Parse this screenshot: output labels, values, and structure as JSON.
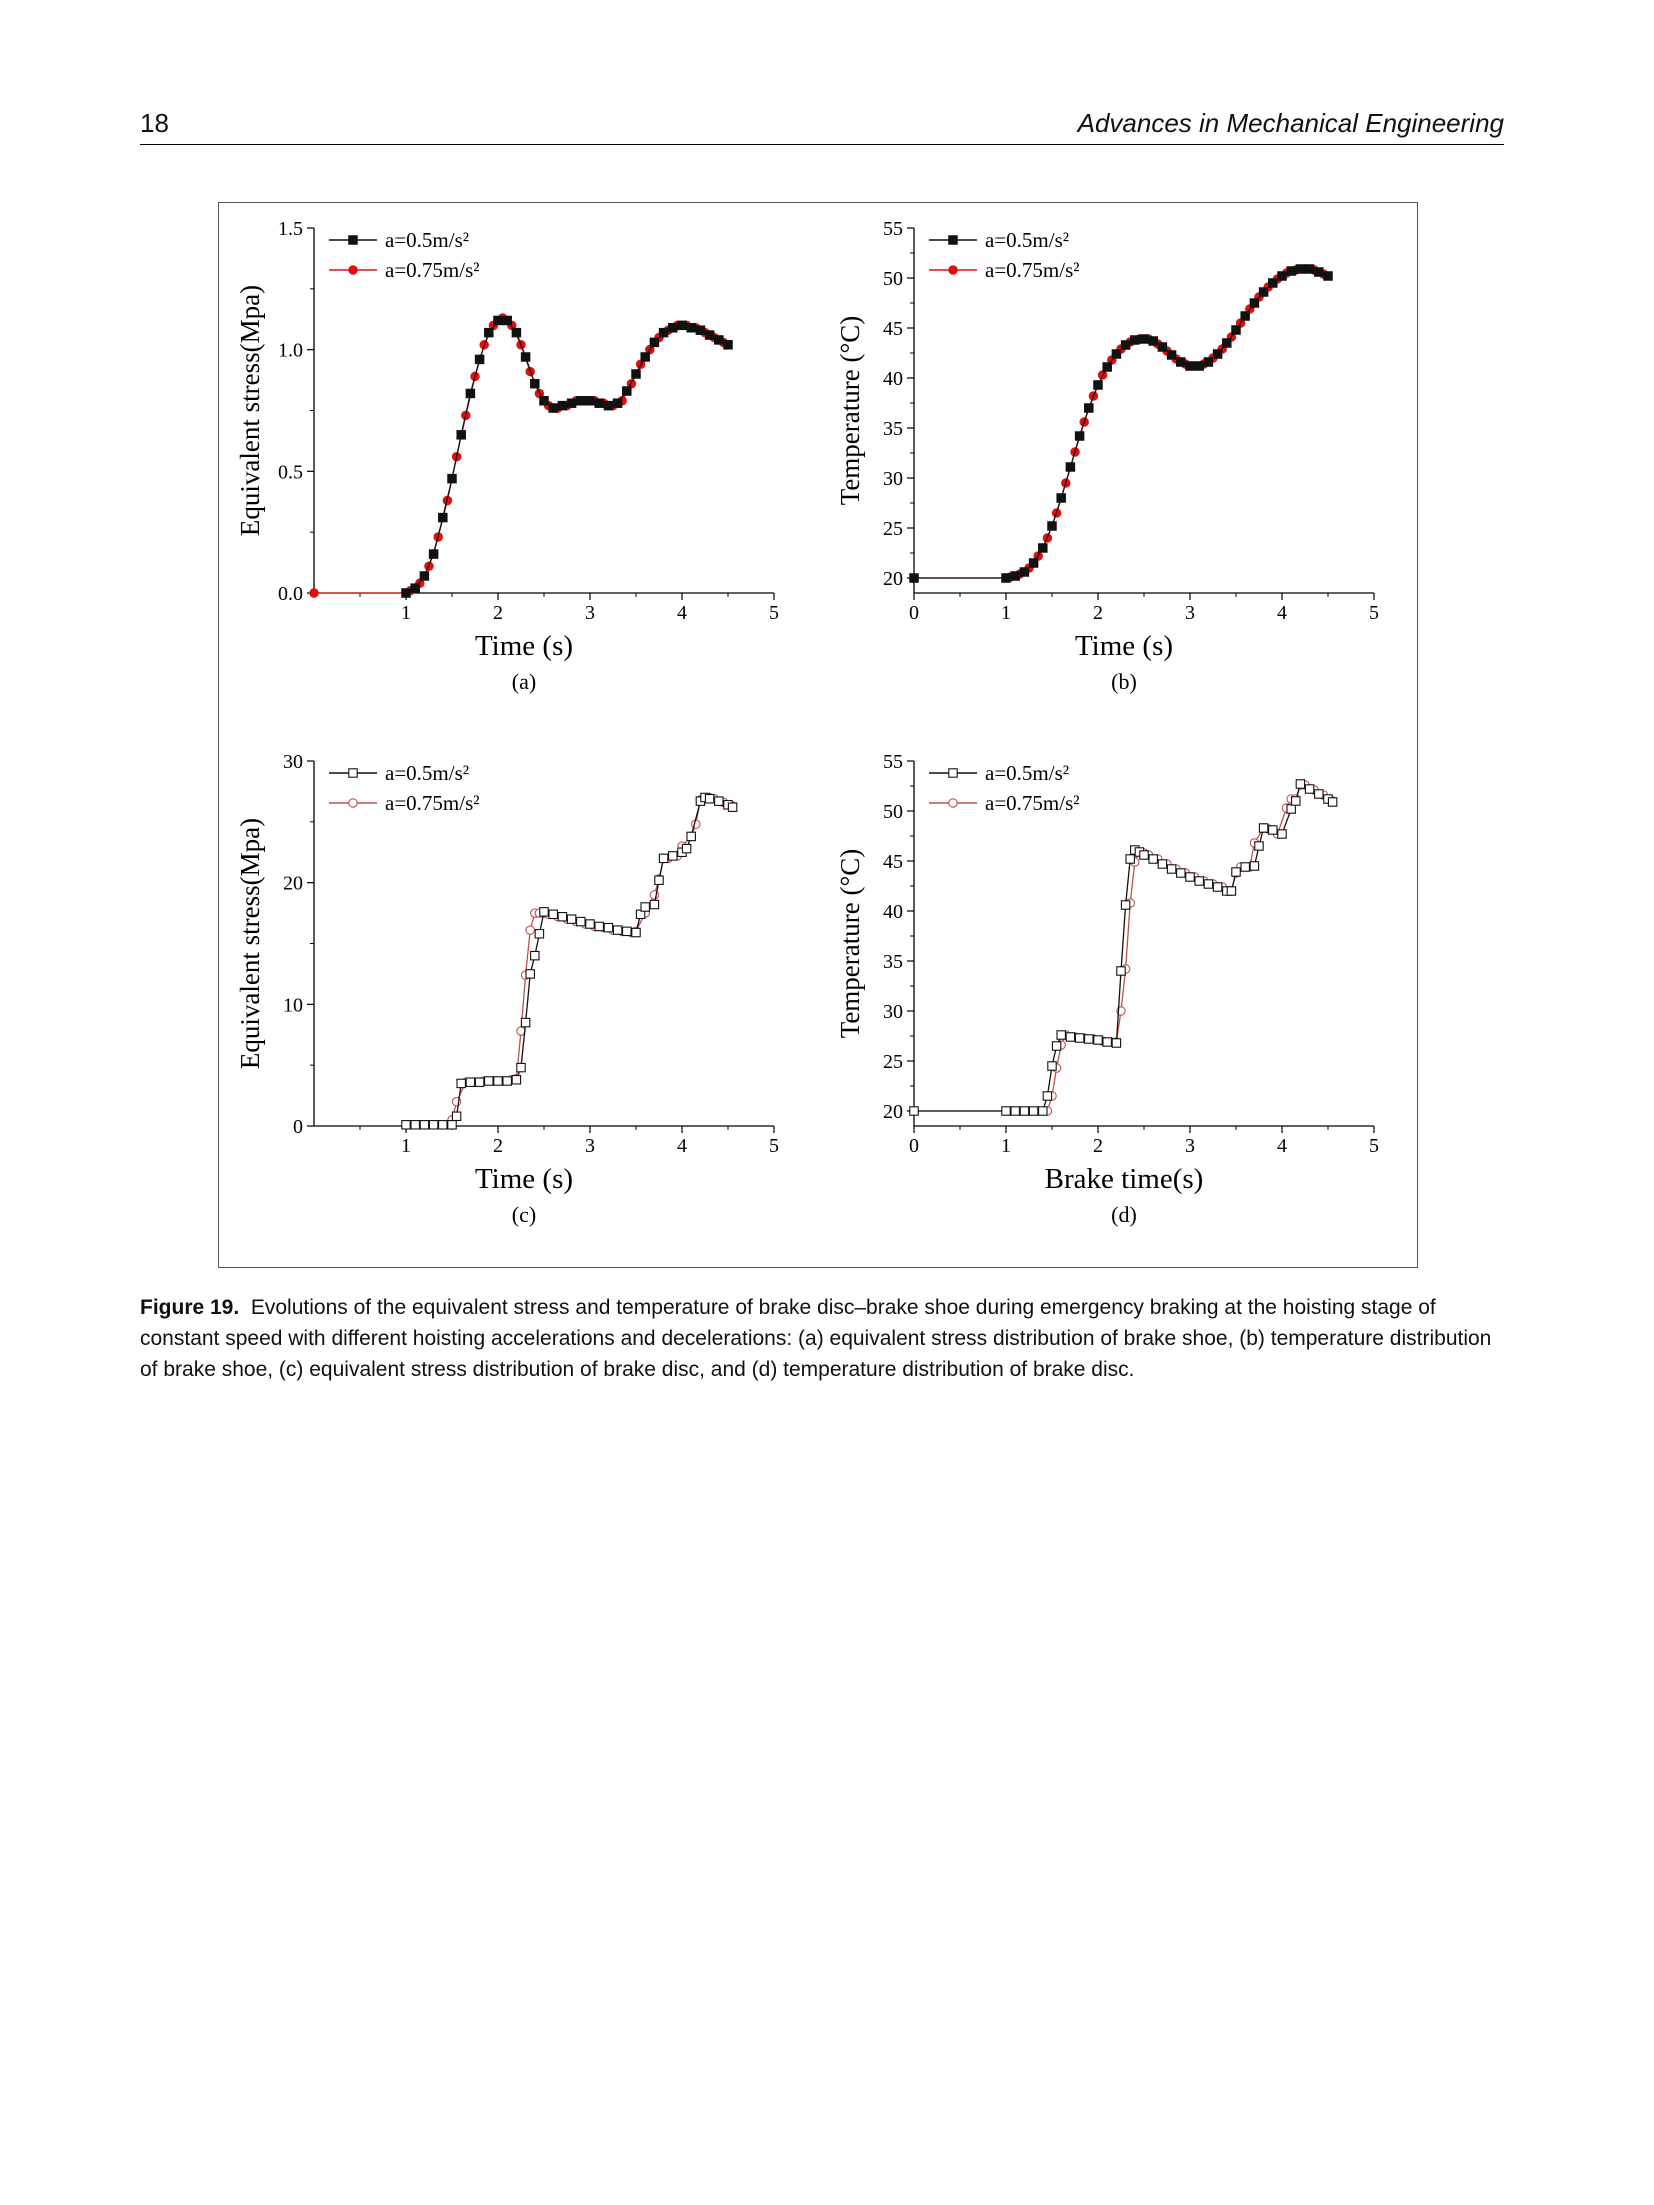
{
  "header": {
    "page_number": "18",
    "journal": "Advances in Mechanical Engineering"
  },
  "caption": {
    "label": "Figure 19.",
    "text": "Evolutions of the equivalent stress and temperature of brake disc–brake shoe during emergency braking at the hoisting stage of constant speed with different hoisting accelerations and decelerations: (a) equivalent stress distribution of brake shoe, (b) temperature distribution of brake shoe, (c) equivalent stress distribution of brake disc, and (d) temperature distribution of brake disc."
  },
  "colors": {
    "series1": "#111111",
    "series2": "#e01010",
    "series2_hollow": "#c05050"
  },
  "chart_data": [
    {
      "id": "a",
      "type": "line",
      "panel_label": "(a)",
      "xlabel": "Time (s)",
      "ylabel": "Equivalent stress(Mpa)",
      "xlim": [
        0,
        5
      ],
      "ylim": [
        0,
        1.5
      ],
      "xticks": [
        "1",
        "2",
        "3",
        "4",
        "5"
      ],
      "xtick_values": [
        1,
        2,
        3,
        4,
        5
      ],
      "yticks": [
        "0.0",
        "0.5",
        "1.0",
        "1.5"
      ],
      "ytick_values": [
        0,
        0.5,
        1.0,
        1.5
      ],
      "marker_style": "filled",
      "legend_placement": "top-left",
      "series": [
        {
          "name": "a=0.5m/s²",
          "marker": "square",
          "x": [
            1.0,
            1.1,
            1.2,
            1.3,
            1.4,
            1.5,
            1.6,
            1.7,
            1.8,
            1.9,
            2.0,
            2.1,
            2.2,
            2.3,
            2.4,
            2.5,
            2.6,
            2.7,
            2.8,
            2.9,
            3.0,
            3.1,
            3.2,
            3.3,
            3.4,
            3.5,
            3.6,
            3.7,
            3.8,
            3.9,
            4.0,
            4.1,
            4.2,
            4.3,
            4.4,
            4.5
          ],
          "y": [
            0.0,
            0.02,
            0.07,
            0.16,
            0.31,
            0.47,
            0.65,
            0.82,
            0.96,
            1.07,
            1.12,
            1.12,
            1.07,
            0.97,
            0.86,
            0.79,
            0.76,
            0.77,
            0.78,
            0.79,
            0.79,
            0.78,
            0.77,
            0.78,
            0.83,
            0.9,
            0.97,
            1.03,
            1.07,
            1.09,
            1.1,
            1.09,
            1.08,
            1.06,
            1.04,
            1.02
          ]
        },
        {
          "name": "a=0.75m/s²",
          "marker": "circle",
          "x": [
            0.0,
            1.0,
            1.05,
            1.15,
            1.25,
            1.35,
            1.45,
            1.55,
            1.65,
            1.75,
            1.85,
            1.95,
            2.05,
            2.15,
            2.25,
            2.35,
            2.45,
            2.55,
            2.65,
            2.75,
            2.85,
            2.95,
            3.05,
            3.15,
            3.25,
            3.35,
            3.45,
            3.55,
            3.65,
            3.75,
            3.85,
            3.95,
            4.05,
            4.15,
            4.25,
            4.35,
            4.45
          ],
          "y": [
            0.0,
            0.0,
            0.01,
            0.04,
            0.11,
            0.23,
            0.38,
            0.56,
            0.73,
            0.89,
            1.02,
            1.1,
            1.13,
            1.1,
            1.02,
            0.91,
            0.82,
            0.77,
            0.76,
            0.77,
            0.79,
            0.79,
            0.79,
            0.78,
            0.77,
            0.79,
            0.86,
            0.94,
            1.0,
            1.05,
            1.08,
            1.1,
            1.1,
            1.09,
            1.07,
            1.05,
            1.03
          ]
        }
      ]
    },
    {
      "id": "b",
      "type": "line",
      "panel_label": "(b)",
      "xlabel": "Time (s)",
      "ylabel": "Temperature (°C)",
      "xlim": [
        0,
        5
      ],
      "ylim": [
        18.5,
        55
      ],
      "xticks": [
        "0",
        "1",
        "2",
        "3",
        "4",
        "5"
      ],
      "xtick_values": [
        0,
        1,
        2,
        3,
        4,
        5
      ],
      "yticks": [
        "20",
        "25",
        "30",
        "35",
        "40",
        "45",
        "50",
        "55"
      ],
      "ytick_values": [
        20,
        25,
        30,
        35,
        40,
        45,
        50,
        55
      ],
      "marker_style": "filled",
      "legend_placement": "top-left",
      "series": [
        {
          "name": "a=0.5m/s²",
          "marker": "square",
          "x": [
            0.0,
            1.0,
            1.1,
            1.2,
            1.3,
            1.4,
            1.5,
            1.6,
            1.7,
            1.8,
            1.9,
            2.0,
            2.1,
            2.2,
            2.3,
            2.4,
            2.5,
            2.6,
            2.7,
            2.8,
            2.9,
            3.0,
            3.1,
            3.2,
            3.3,
            3.4,
            3.5,
            3.6,
            3.7,
            3.8,
            3.9,
            4.0,
            4.1,
            4.2,
            4.3,
            4.4,
            4.5
          ],
          "y": [
            20.0,
            20.0,
            20.2,
            20.6,
            21.5,
            23.0,
            25.2,
            28.0,
            31.1,
            34.2,
            37.0,
            39.3,
            41.1,
            42.4,
            43.3,
            43.8,
            43.9,
            43.7,
            43.1,
            42.3,
            41.6,
            41.2,
            41.2,
            41.6,
            42.4,
            43.5,
            44.8,
            46.2,
            47.5,
            48.6,
            49.5,
            50.2,
            50.7,
            50.9,
            50.9,
            50.6,
            50.2
          ]
        },
        {
          "name": "a=0.75m/s²",
          "marker": "circle",
          "x": [
            0.0,
            1.0,
            1.05,
            1.15,
            1.25,
            1.35,
            1.45,
            1.55,
            1.65,
            1.75,
            1.85,
            1.95,
            2.05,
            2.15,
            2.25,
            2.35,
            2.45,
            2.55,
            2.65,
            2.75,
            2.85,
            2.95,
            3.05,
            3.15,
            3.25,
            3.35,
            3.45,
            3.55,
            3.65,
            3.75,
            3.85,
            3.95,
            4.05,
            4.15,
            4.25,
            4.35,
            4.45
          ],
          "y": [
            20.0,
            20.0,
            20.1,
            20.4,
            21.0,
            22.2,
            24.0,
            26.5,
            29.5,
            32.6,
            35.6,
            38.2,
            40.3,
            41.8,
            42.9,
            43.6,
            43.9,
            43.9,
            43.4,
            42.7,
            41.9,
            41.4,
            41.2,
            41.4,
            42.0,
            42.9,
            44.1,
            45.5,
            46.9,
            48.1,
            49.1,
            49.9,
            50.5,
            50.8,
            50.9,
            50.8,
            50.4
          ]
        }
      ]
    },
    {
      "id": "c",
      "type": "line",
      "panel_label": "(c)",
      "xlabel": "Time (s)",
      "ylabel": "Equivalent stress(Mpa)",
      "xlim": [
        0,
        5
      ],
      "ylim": [
        0,
        30
      ],
      "xticks": [
        "1",
        "2",
        "3",
        "4",
        "5"
      ],
      "xtick_values": [
        1,
        2,
        3,
        4,
        5
      ],
      "yticks": [
        "0",
        "10",
        "20",
        "30"
      ],
      "ytick_values": [
        0,
        10,
        20,
        30
      ],
      "marker_style": "hollow",
      "legend_placement": "top-left",
      "series": [
        {
          "name": "a=0.5m/s²",
          "marker": "square",
          "x": [
            1.0,
            1.1,
            1.2,
            1.3,
            1.4,
            1.5,
            1.55,
            1.6,
            1.7,
            1.8,
            1.9,
            2.0,
            2.1,
            2.2,
            2.25,
            2.3,
            2.35,
            2.4,
            2.45,
            2.5,
            2.6,
            2.7,
            2.8,
            2.9,
            3.0,
            3.1,
            3.2,
            3.3,
            3.4,
            3.5,
            3.55,
            3.6,
            3.7,
            3.75,
            3.8,
            3.9,
            4.0,
            4.05,
            4.1,
            4.2,
            4.25,
            4.3,
            4.4,
            4.5,
            4.55
          ],
          "y": [
            0.1,
            0.1,
            0.1,
            0.1,
            0.1,
            0.1,
            0.8,
            3.5,
            3.6,
            3.6,
            3.7,
            3.7,
            3.7,
            3.8,
            4.8,
            8.5,
            12.5,
            14.0,
            15.8,
            17.6,
            17.4,
            17.2,
            17.0,
            16.8,
            16.6,
            16.4,
            16.3,
            16.1,
            16.0,
            15.9,
            17.4,
            18.0,
            18.2,
            20.2,
            22.0,
            22.2,
            22.5,
            22.8,
            23.8,
            26.7,
            27.0,
            26.9,
            26.7,
            26.4,
            26.2
          ]
        },
        {
          "name": "a=0.75m/s²",
          "marker": "circle",
          "x": [
            1.45,
            1.5,
            1.55,
            1.65,
            1.75,
            1.85,
            1.95,
            2.05,
            2.15,
            2.2,
            2.25,
            2.3,
            2.35,
            2.4,
            2.45,
            2.5,
            2.55,
            2.65,
            2.75,
            2.85,
            2.95,
            3.05,
            3.15,
            3.25,
            3.35,
            3.45,
            3.5,
            3.6,
            3.7,
            3.75,
            3.8,
            3.85,
            3.95,
            4.0,
            4.1,
            4.15,
            4.2,
            4.3,
            4.35,
            4.45,
            4.55
          ],
          "y": [
            0.1,
            0.5,
            2.0,
            3.6,
            3.6,
            3.7,
            3.7,
            3.7,
            3.8,
            3.9,
            7.8,
            12.4,
            16.1,
            17.5,
            17.5,
            17.5,
            17.4,
            17.2,
            17.0,
            16.8,
            16.6,
            16.4,
            16.3,
            16.1,
            16.0,
            15.9,
            16.0,
            17.5,
            19.0,
            20.3,
            22.0,
            22.0,
            22.2,
            23.0,
            23.8,
            24.8,
            26.8,
            27.0,
            26.9,
            26.6,
            26.3
          ]
        }
      ]
    },
    {
      "id": "d",
      "type": "line",
      "panel_label": "(d)",
      "xlabel": "Brake time(s)",
      "ylabel": "Temperature (°C)",
      "xlim": [
        0,
        5
      ],
      "ylim": [
        18.5,
        55
      ],
      "xticks": [
        "0",
        "1",
        "2",
        "3",
        "4",
        "5"
      ],
      "xtick_values": [
        0,
        1,
        2,
        3,
        4,
        5
      ],
      "yticks": [
        "20",
        "25",
        "30",
        "35",
        "40",
        "45",
        "50",
        "55"
      ],
      "ytick_values": [
        20,
        25,
        30,
        35,
        40,
        45,
        50,
        55
      ],
      "marker_style": "hollow",
      "legend_placement": "top-left",
      "series": [
        {
          "name": "a=0.5m/s²",
          "marker": "square",
          "x": [
            0.0,
            1.0,
            1.1,
            1.2,
            1.3,
            1.4,
            1.45,
            1.5,
            1.55,
            1.6,
            1.7,
            1.8,
            1.9,
            2.0,
            2.1,
            2.2,
            2.25,
            2.3,
            2.35,
            2.4,
            2.45,
            2.5,
            2.6,
            2.7,
            2.8,
            2.9,
            3.0,
            3.1,
            3.2,
            3.3,
            3.4,
            3.45,
            3.5,
            3.6,
            3.7,
            3.75,
            3.8,
            3.9,
            4.0,
            4.1,
            4.15,
            4.2,
            4.3,
            4.4,
            4.5,
            4.55
          ],
          "y": [
            20.0,
            20.0,
            20.0,
            20.0,
            20.0,
            20.0,
            21.5,
            24.5,
            26.5,
            27.6,
            27.4,
            27.3,
            27.2,
            27.1,
            26.9,
            26.8,
            34.0,
            40.6,
            45.2,
            46.1,
            45.9,
            45.6,
            45.2,
            44.7,
            44.2,
            43.8,
            43.4,
            43.0,
            42.7,
            42.4,
            42.0,
            42.0,
            43.9,
            44.4,
            44.5,
            46.5,
            48.3,
            48.1,
            47.7,
            50.2,
            51.0,
            52.7,
            52.2,
            51.7,
            51.2,
            50.9
          ]
        },
        {
          "name": "a=0.75m/s²",
          "marker": "circle",
          "x": [
            0.0,
            1.0,
            1.15,
            1.25,
            1.35,
            1.45,
            1.5,
            1.55,
            1.6,
            1.65,
            1.75,
            1.85,
            1.95,
            2.05,
            2.15,
            2.2,
            2.25,
            2.3,
            2.35,
            2.4,
            2.45,
            2.5,
            2.55,
            2.65,
            2.75,
            2.85,
            2.95,
            3.05,
            3.15,
            3.25,
            3.35,
            3.45,
            3.5,
            3.55,
            3.65,
            3.7,
            3.8,
            3.85,
            3.95,
            4.05,
            4.1,
            4.15,
            4.2,
            4.25,
            4.35,
            4.45,
            4.55
          ],
          "y": [
            20.0,
            20.0,
            20.0,
            20.0,
            20.0,
            20.0,
            21.5,
            24.3,
            26.6,
            27.6,
            27.4,
            27.3,
            27.2,
            27.0,
            26.9,
            26.9,
            30.0,
            34.2,
            40.8,
            44.9,
            45.9,
            45.8,
            45.6,
            45.2,
            44.7,
            44.2,
            43.8,
            43.4,
            43.0,
            42.7,
            42.4,
            42.0,
            43.8,
            44.4,
            44.4,
            46.8,
            48.3,
            48.2,
            47.7,
            50.3,
            51.2,
            51.2,
            52.6,
            52.6,
            52.1,
            51.6,
            51.0
          ]
        }
      ]
    }
  ]
}
